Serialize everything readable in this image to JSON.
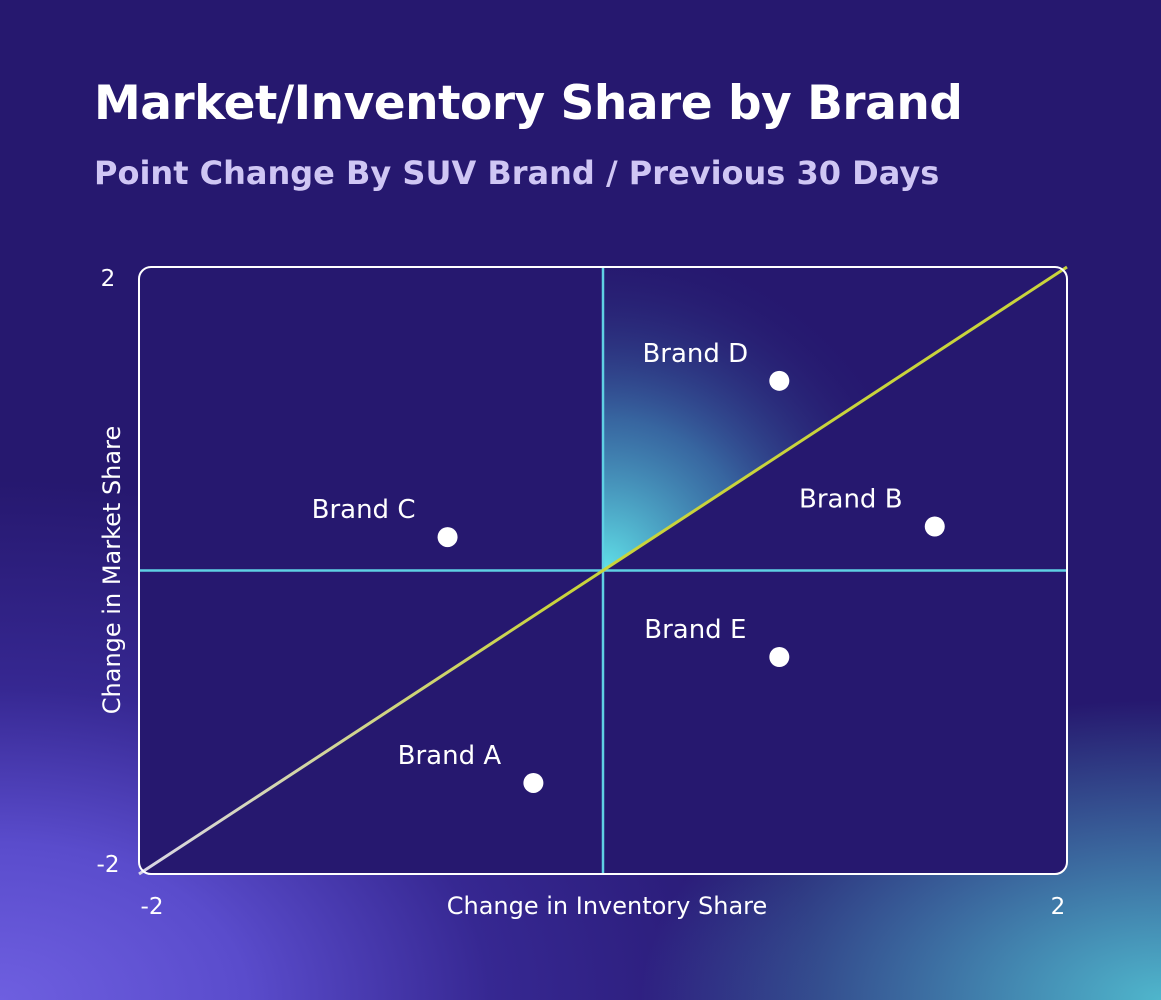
{
  "header": {
    "title": "Market/Inventory Share by Brand",
    "subtitle": "Point Change By SUV Brand / Previous 30 Days"
  },
  "chart_data": {
    "type": "scatter",
    "title": "Market/Inventory Share by Brand",
    "subtitle": "Point Change By SUV Brand / Previous 30 Days",
    "xlabel": "Change in Inventory Share",
    "ylabel": "Change in Market Share",
    "xlim": [
      -2,
      2
    ],
    "ylim": [
      -2,
      2
    ],
    "x_ticks": [
      "-2",
      "2"
    ],
    "y_ticks": [
      "-2",
      "2"
    ],
    "grid": false,
    "reference_lines": [
      "x = 0",
      "y = 0",
      "y = x"
    ],
    "colors": {
      "point": "#ffffff",
      "quadrant_lines": "#5fd0e4",
      "diagonal": "#c9d43c",
      "frame": "#ffffff"
    },
    "points": [
      {
        "label": "Brand A",
        "x": -0.3,
        "y": -1.4
      },
      {
        "label": "Brand B",
        "x": 1.43,
        "y": 0.29
      },
      {
        "label": "Brand C",
        "x": -0.67,
        "y": 0.22
      },
      {
        "label": "Brand D",
        "x": 0.76,
        "y": 1.25
      },
      {
        "label": "Brand E",
        "x": 0.76,
        "y": -0.57
      }
    ]
  }
}
